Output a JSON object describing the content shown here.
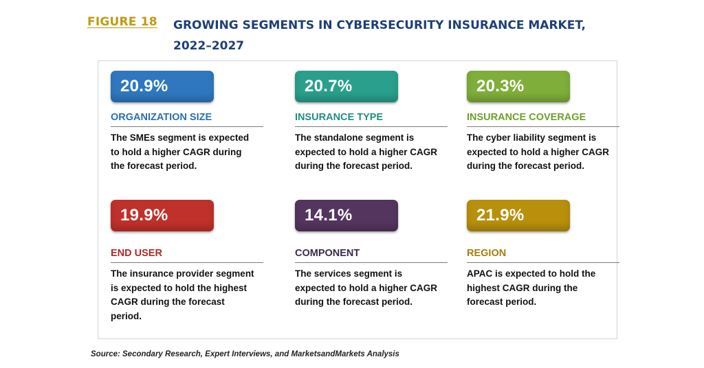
{
  "header": {
    "figure_label": "FIGURE 18",
    "title": "GROWING SEGMENTS IN CYBERSECURITY INSURANCE MARKET, 2022–2027"
  },
  "colors": {
    "figure_label": "#c09a10",
    "title": "#1e3f78"
  },
  "segments": [
    {
      "value": "20.9%",
      "category": "ORGANIZATION SIZE",
      "description": "The SMEs segment is expected to hold a higher CAGR during the forecast period.",
      "color": "#2f78c0",
      "label_color": "#2a6fb3"
    },
    {
      "value": "20.7%",
      "category": "INSURANCE TYPE",
      "description": "The standalone segment is expected to hold a higher CAGR during the forecast period.",
      "color": "#2a9f8c",
      "label_color": "#1f8f80"
    },
    {
      "value": "20.3%",
      "category": "INSURANCE COVERAGE",
      "description": "The cyber liability segment is expected to hold a higher CAGR during the forecast period.",
      "color": "#7fae3a",
      "label_color": "#6f9f2c"
    },
    {
      "value": "19.9%",
      "category": "END USER",
      "description": "The insurance provider segment is expected to hold the highest CAGR during the forecast period.",
      "color": "#c0312b",
      "label_color": "#b02a24"
    },
    {
      "value": "14.1%",
      "category": "COMPONENT",
      "description": "The services segment is expected to hold a higher CAGR during the forecast period.",
      "color": "#54355e",
      "label_color": "#3c2a48"
    },
    {
      "value": "21.9%",
      "category": "REGION",
      "description": "APAC is expected to hold the highest CAGR during the forecast period.",
      "color": "#b8900c",
      "label_color": "#a57f0a"
    }
  ],
  "source": "Source: Secondary Research, Expert Interviews, and MarketsandMarkets Analysis"
}
